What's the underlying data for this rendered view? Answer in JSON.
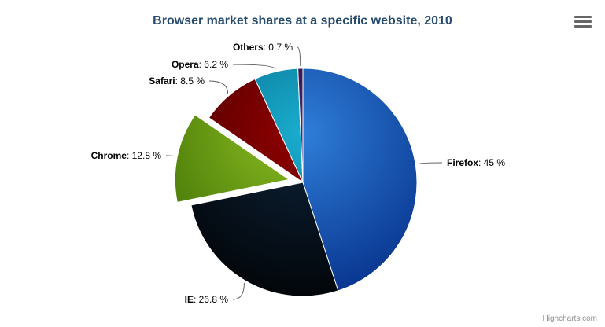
{
  "chart_data": {
    "type": "pie",
    "title": "Browser market shares at a specific website, 2010",
    "legend": false,
    "label_separator": ": ",
    "slices": [
      {
        "name": "Firefox",
        "value": 45,
        "display": "45 %",
        "color": "#2f7ed8",
        "sliced": false
      },
      {
        "name": "IE",
        "value": 26.8,
        "display": "26.8 %",
        "color": "#0d233a",
        "sliced": false
      },
      {
        "name": "Chrome",
        "value": 12.8,
        "display": "12.8 %",
        "color": "#8bbc21",
        "sliced": true
      },
      {
        "name": "Safari",
        "value": 8.5,
        "display": "8.5 %",
        "color": "#910000",
        "sliced": false
      },
      {
        "name": "Opera",
        "value": 6.2,
        "display": "6.2 %",
        "color": "#1aadce",
        "sliced": false
      },
      {
        "name": "Others",
        "value": 0.7,
        "display": "0.7 %",
        "color": "#492970",
        "sliced": false
      }
    ]
  },
  "credits": "Highcharts.com",
  "colors": {
    "title": "#274b6d",
    "label_text": "#000000",
    "connector": "#606060",
    "credits": "#909090",
    "background": "#ffffff",
    "menu_icon": "#666666",
    "slice_border": "#ffffff"
  }
}
